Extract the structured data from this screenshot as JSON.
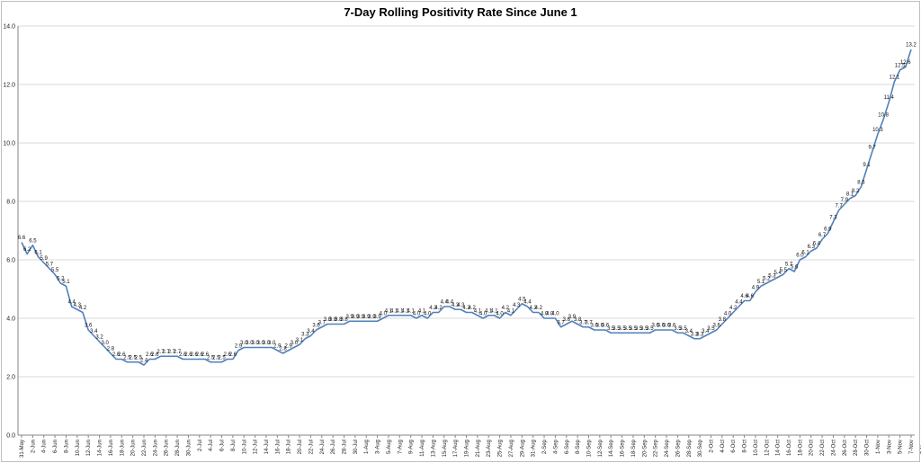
{
  "chart_data": {
    "type": "line",
    "title": "7-Day Rolling Positivity Rate Since June 1",
    "xlabel": "",
    "ylabel": "",
    "ylim": [
      0,
      14
    ],
    "yticks": [
      "0.0",
      "2.0",
      "4.0",
      "6.0",
      "8.0",
      "10.0",
      "12.0",
      "14.0"
    ],
    "grid": true,
    "legend": "none",
    "line_color": "#4f81bd",
    "x_tick_labels": [
      "31-May",
      "2-Jun",
      "4-Jun",
      "6-Jun",
      "8-Jun",
      "10-Jun",
      "12-Jun",
      "14-Jun",
      "16-Jun",
      "18-Jun",
      "20-Jun",
      "22-Jun",
      "24-Jun",
      "26-Jun",
      "28-Jun",
      "30-Jun",
      "2-Jul",
      "4-Jul",
      "6-Jul",
      "8-Jul",
      "10-Jul",
      "12-Jul",
      "14-Jul",
      "16-Jul",
      "18-Jul",
      "20-Jul",
      "22-Jul",
      "24-Jul",
      "26-Jul",
      "28-Jul",
      "30-Jul",
      "1-Aug",
      "3-Aug",
      "5-Aug",
      "7-Aug",
      "9-Aug",
      "11-Aug",
      "13-Aug",
      "15-Aug",
      "17-Aug",
      "19-Aug",
      "21-Aug",
      "23-Aug",
      "25-Aug",
      "27-Aug",
      "29-Aug",
      "31-Aug",
      "2-Sep",
      "4-Sep",
      "6-Sep",
      "8-Sep",
      "10-Sep",
      "12-Sep",
      "14-Sep",
      "16-Sep",
      "18-Sep",
      "20-Sep",
      "22-Sep",
      "24-Sep",
      "26-Sep",
      "28-Sep",
      "30-Sep",
      "2-Oct",
      "4-Oct",
      "6-Oct",
      "8-Oct",
      "10-Oct",
      "12-Oct",
      "14-Oct",
      "16-Oct",
      "18-Oct",
      "20-Oct",
      "22-Oct",
      "24-Oct",
      "26-Oct",
      "28-Oct",
      "30-Oct",
      "1-Nov",
      "3-Nov",
      "5-Nov",
      "7-Nov",
      "9-Nov",
      "11-Nov",
      "13-Nov"
    ],
    "values": [
      6.6,
      6.2,
      6.5,
      6.1,
      5.9,
      5.7,
      5.5,
      5.2,
      5.1,
      4.4,
      4.3,
      4.2,
      3.6,
      3.4,
      3.2,
      3.0,
      2.8,
      2.6,
      2.6,
      2.5,
      2.5,
      2.5,
      2.4,
      2.6,
      2.6,
      2.7,
      2.7,
      2.7,
      2.7,
      2.6,
      2.6,
      2.6,
      2.6,
      2.6,
      2.5,
      2.5,
      2.5,
      2.6,
      2.6,
      2.9,
      3.0,
      3.0,
      3.0,
      3.0,
      3.0,
      3.0,
      2.9,
      2.8,
      2.9,
      3.0,
      3.1,
      3.3,
      3.4,
      3.6,
      3.7,
      3.8,
      3.8,
      3.8,
      3.8,
      3.9,
      3.9,
      3.9,
      3.9,
      3.9,
      3.9,
      4.0,
      4.1,
      4.1,
      4.1,
      4.1,
      4.1,
      4.0,
      4.1,
      4.0,
      4.2,
      4.2,
      4.4,
      4.4,
      4.3,
      4.3,
      4.2,
      4.2,
      4.1,
      4.0,
      4.1,
      4.1,
      4.0,
      4.2,
      4.1,
      4.3,
      4.5,
      4.4,
      4.2,
      4.2,
      4.0,
      4.0,
      4.0,
      3.7,
      3.8,
      3.9,
      3.8,
      3.7,
      3.7,
      3.6,
      3.6,
      3.6,
      3.5,
      3.5,
      3.5,
      3.5,
      3.5,
      3.5,
      3.5,
      3.5,
      3.6,
      3.6,
      3.6,
      3.6,
      3.5,
      3.5,
      3.4,
      3.3,
      3.3,
      3.4,
      3.5,
      3.6,
      3.8,
      4.0,
      4.2,
      4.4,
      4.6,
      4.6,
      4.9,
      5.1,
      5.2,
      5.3,
      5.4,
      5.5,
      5.7,
      5.6,
      6.0,
      6.1,
      6.3,
      6.4,
      6.7,
      6.9,
      7.3,
      7.7,
      7.9,
      8.1,
      8.2,
      8.5,
      9.1,
      9.7,
      10.3,
      10.8,
      11.4,
      12.1,
      12.5,
      12.6,
      13.2
    ],
    "data_labels": [
      "6.6",
      "6.2",
      "6.5",
      "6.1",
      "5.9",
      "5.7",
      "5.5",
      "5.2",
      "5.1",
      "4.4",
      "4.3",
      "4.2",
      "3.6",
      "3.4",
      "3.2",
      "3.0",
      "2.8",
      "2.6",
      "2.6",
      "2.5",
      "2.5",
      "2.5",
      "2.4",
      "2.6",
      "2.6",
      "2.7",
      "2.7",
      "2.7",
      "2.7",
      "2.6",
      "2.6",
      "2.6",
      "2.6",
      "2.6",
      "2.5",
      "2.5",
      "2.5",
      "2.6",
      "2.6",
      "2.9",
      "3.0",
      "3.0",
      "3.0",
      "3.0",
      "3.0",
      "3.0",
      "2.9",
      "2.8",
      "2.9",
      "3.0",
      "3.1",
      "3.3",
      "3.4",
      "3.6",
      "3.7",
      "3.8",
      "3.8",
      "3.8",
      "3.8",
      "3.9",
      "3.9",
      "3.9",
      "3.9",
      "3.9",
      "3.9",
      "4.0",
      "4.1",
      "4.1",
      "4.1",
      "4.1",
      "4.1",
      "4.0",
      "4.1",
      "4.0",
      "4.2",
      "4.2",
      "4.4",
      "4.4",
      "4.3",
      "4.3",
      "4.2",
      "4.2",
      "4.1",
      "4.0",
      "4.1",
      "4.1",
      "4.0",
      "4.2",
      "4.1",
      "4.3",
      "4.5",
      "4.4",
      "4.2",
      "4.2",
      "4.0",
      "4.0",
      "4.0",
      "3.7",
      "3.8",
      "3.9",
      "3.8",
      "3.7",
      "3.7",
      "3.6",
      "3.6",
      "3.6",
      "3.5",
      "3.5",
      "3.5",
      "3.5",
      "3.5",
      "3.5",
      "3.5",
      "3.5",
      "3.6",
      "3.6",
      "3.6",
      "3.6",
      "3.5",
      "3.5",
      "3.4",
      "3.3",
      "3.3",
      "3.4",
      "3.5",
      "3.6",
      "3.8",
      "4.0",
      "4.2",
      "4.4",
      "4.6",
      "4.6",
      "4.9",
      "5.1",
      "5.2",
      "5.3",
      "5.4",
      "5.5",
      "5.7",
      "5.6",
      "6.0",
      "6.1",
      "6.3",
      "6.4",
      "6.7",
      "6.9",
      "7.3",
      "7.7",
      "7.9",
      "8.1",
      "8.2",
      "8.5",
      "9.1",
      "9.7",
      "10.3",
      "10.8",
      "11.4",
      "12.1",
      "12.5",
      "12.6",
      "13.2"
    ]
  }
}
